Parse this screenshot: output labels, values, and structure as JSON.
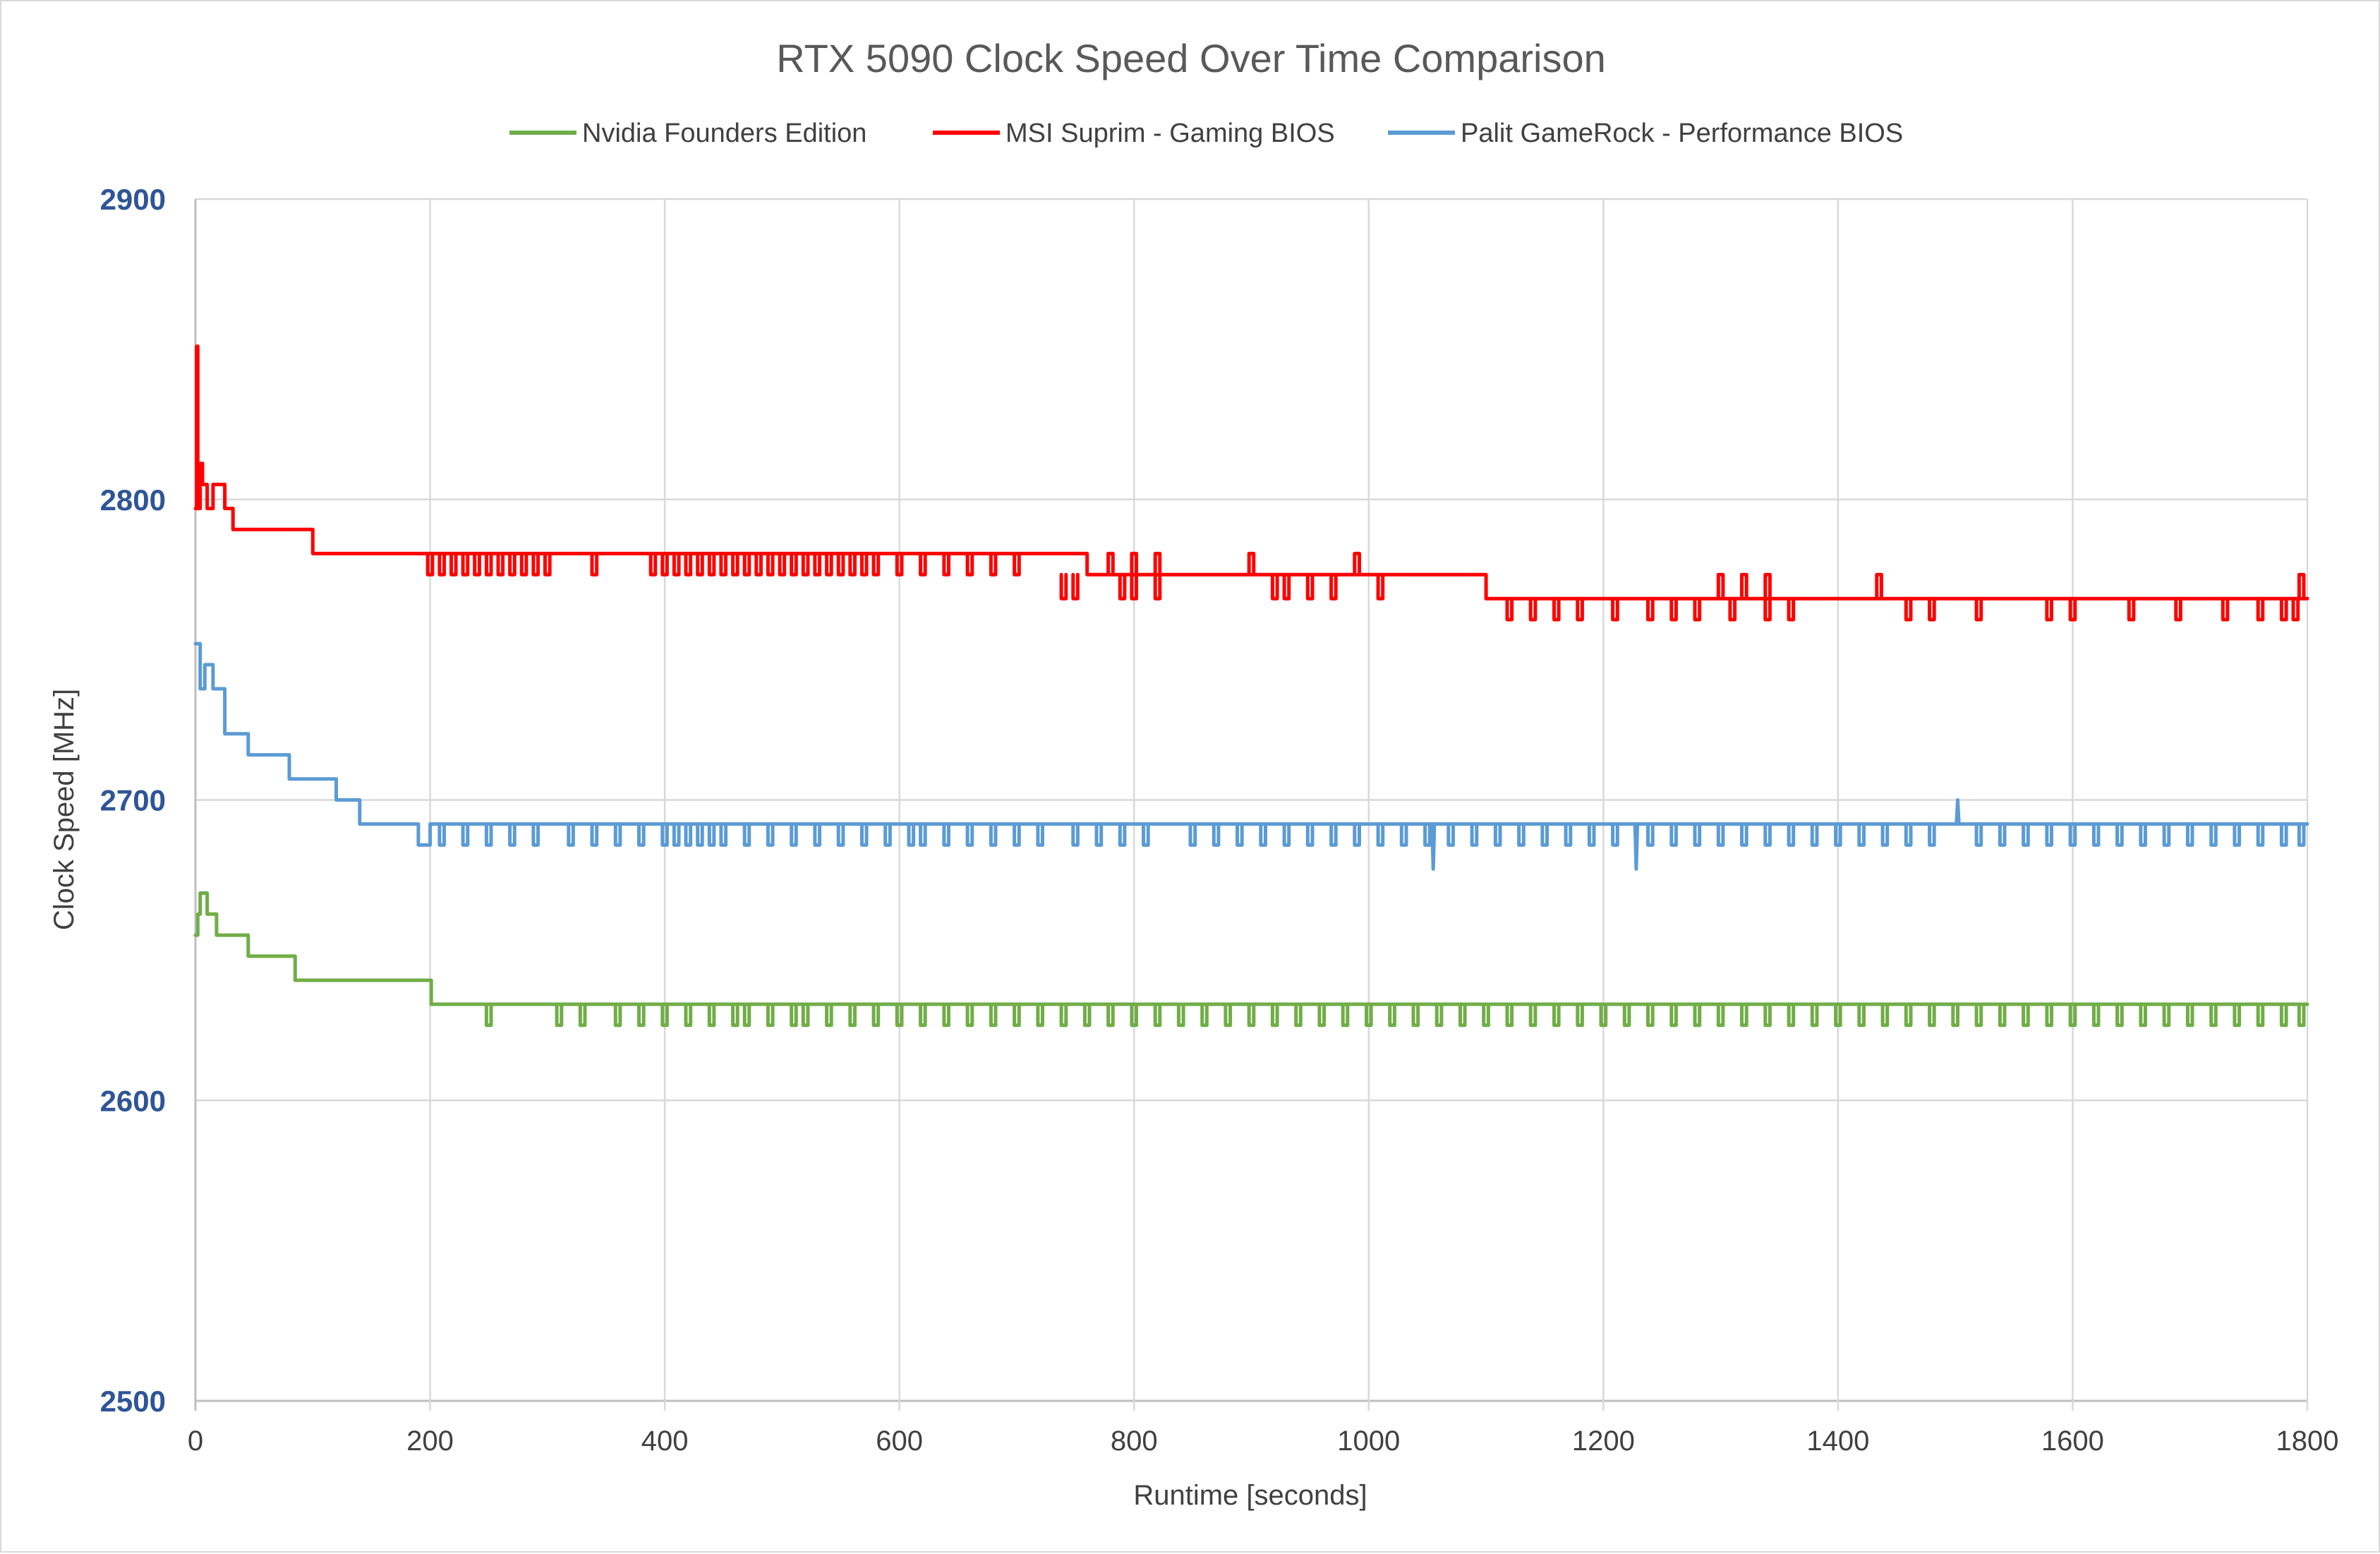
{
  "chart_data": {
    "type": "line",
    "title": "RTX 5090 Clock Speed Over Time Comparison",
    "xlabel": "Runtime [seconds]",
    "ylabel": "Clock Speed [MHz]",
    "xlim": [
      0,
      1800
    ],
    "ylim": [
      2500,
      2900
    ],
    "x_ticks": [
      "0",
      "200",
      "400",
      "600",
      "800",
      "1000",
      "1200",
      "1400",
      "1600",
      "1800"
    ],
    "y_ticks": [
      "2500",
      "2600",
      "2700",
      "2800",
      "2900"
    ],
    "grid": true,
    "legend_position": "top",
    "series": [
      {
        "name": "Nvidia Founders Edition",
        "color": "#70ad47",
        "points": [
          [
            0,
            2655
          ],
          [
            2,
            2662
          ],
          [
            4,
            2669
          ],
          [
            8,
            2669
          ],
          [
            10,
            2662
          ],
          [
            15,
            2662
          ],
          [
            18,
            2655
          ],
          [
            40,
            2655
          ],
          [
            45,
            2648
          ],
          [
            80,
            2648
          ],
          [
            85,
            2640
          ],
          [
            150,
            2640
          ],
          [
            200,
            2640
          ],
          [
            201,
            2632
          ],
          [
            1800,
            2632
          ]
        ],
        "dips": {
          "from": 2632,
          "to": 2625,
          "at": [
            250,
            310,
            330,
            360,
            380,
            400,
            420,
            440,
            460,
            470,
            490,
            510,
            520,
            540,
            560,
            580,
            600,
            620,
            640,
            660,
            680,
            700,
            720,
            740,
            760,
            780,
            800,
            820,
            840,
            860,
            880,
            900,
            920,
            940,
            960,
            980,
            1000,
            1020,
            1040,
            1060,
            1080,
            1100,
            1120,
            1140,
            1160,
            1180,
            1200,
            1220,
            1240,
            1260,
            1280,
            1300,
            1320,
            1340,
            1360,
            1380,
            1400,
            1420,
            1440,
            1460,
            1480,
            1500,
            1520,
            1540,
            1560,
            1580,
            1600,
            1620,
            1640,
            1660,
            1680,
            1700,
            1720,
            1740,
            1760,
            1780,
            1795
          ]
        }
      },
      {
        "name": "MSI Suprim - Gaming BIOS",
        "color": "#ff0000",
        "points": [
          [
            0,
            2797
          ],
          [
            1,
            2851
          ],
          [
            2,
            2797
          ],
          [
            4,
            2812
          ],
          [
            6,
            2805
          ],
          [
            10,
            2797
          ],
          [
            15,
            2805
          ],
          [
            25,
            2797
          ],
          [
            30,
            2797
          ],
          [
            32,
            2790
          ],
          [
            80,
            2790
          ],
          [
            100,
            2782
          ],
          [
            720,
            2782
          ],
          [
            760,
            2775
          ],
          [
            1090,
            2775
          ],
          [
            1100,
            2767
          ],
          [
            1800,
            2767
          ]
        ],
        "dips": {
          "from": 2782,
          "to": 2775,
          "at": [
            200,
            210,
            220,
            230,
            240,
            250,
            260,
            270,
            280,
            290,
            300,
            340,
            390,
            400,
            410,
            420,
            430,
            440,
            450,
            460,
            470,
            480,
            490,
            500,
            510,
            520,
            530,
            540,
            550,
            560,
            570,
            580,
            600,
            620,
            640,
            660,
            680,
            700
          ]
        },
        "dips2": {
          "from": 2775,
          "to": 2767,
          "at": [
            740,
            750,
            790,
            800,
            820,
            920,
            930,
            950,
            970,
            1010
          ]
        },
        "dips3": {
          "from": 2767,
          "to": 2760,
          "at": [
            1120,
            1140,
            1160,
            1180,
            1210,
            1240,
            1260,
            1280,
            1310,
            1340,
            1360,
            1460,
            1480,
            1520,
            1580,
            1600,
            1650,
            1690,
            1730,
            1760,
            1780,
            1790
          ]
        },
        "spikes": {
          "from": 2775,
          "to": 2782,
          "at": [
            780,
            800,
            820,
            900,
            990
          ]
        },
        "spikes2": {
          "from": 2767,
          "to": 2775,
          "at": [
            1300,
            1320,
            1340,
            1435,
            1795
          ]
        }
      },
      {
        "name": "Palit GameRock - Performance BIOS",
        "color": "#5b9bd5",
        "points": [
          [
            0,
            2752
          ],
          [
            2,
            2752
          ],
          [
            4,
            2737
          ],
          [
            8,
            2745
          ],
          [
            12,
            2745
          ],
          [
            15,
            2737
          ],
          [
            20,
            2737
          ],
          [
            25,
            2722
          ],
          [
            40,
            2722
          ],
          [
            45,
            2715
          ],
          [
            75,
            2715
          ],
          [
            80,
            2707
          ],
          [
            120,
            2700
          ],
          [
            135,
            2700
          ],
          [
            140,
            2692
          ],
          [
            180,
            2692
          ],
          [
            190,
            2685
          ],
          [
            200,
            2692
          ],
          [
            1800,
            2692
          ]
        ],
        "dips": {
          "from": 2692,
          "to": 2685,
          "at": [
            210,
            230,
            250,
            270,
            290,
            320,
            340,
            360,
            380,
            400,
            410,
            420,
            430,
            440,
            450,
            470,
            490,
            510,
            530,
            550,
            570,
            590,
            610,
            620,
            640,
            660,
            680,
            700,
            720,
            750,
            770,
            790,
            810,
            850,
            870,
            890,
            910,
            930,
            950,
            970,
            990,
            1010,
            1030,
            1050,
            1070,
            1090,
            1110,
            1130,
            1150,
            1170,
            1190,
            1210,
            1240,
            1260,
            1280,
            1300,
            1320,
            1340,
            1360,
            1380,
            1400,
            1420,
            1440,
            1460,
            1480,
            1520,
            1540,
            1560,
            1580,
            1600,
            1620,
            1640,
            1660,
            1680,
            1700,
            1720,
            1740,
            1760,
            1780,
            1795
          ]
        },
        "extra": [
          [
            1055,
            2677
          ],
          [
            1228,
            2677
          ],
          [
            1502,
            2700
          ]
        ]
      }
    ]
  }
}
